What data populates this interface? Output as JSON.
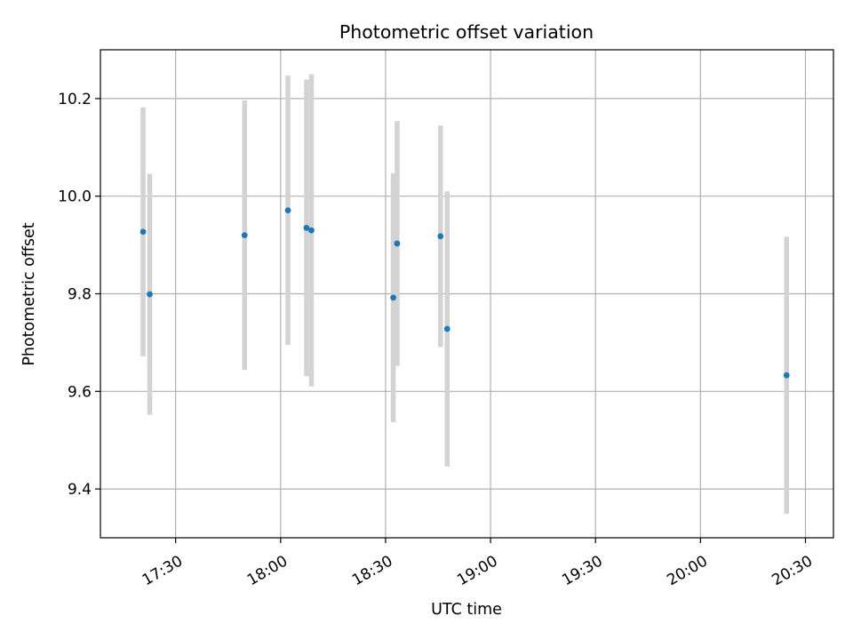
{
  "chart_data": {
    "type": "scatter",
    "title": "Photometric offset variation",
    "xlabel": "UTC time",
    "ylabel": "Photometric offset",
    "x_unit": "minutes after midnight UTC",
    "xlim": [
      1028.5,
      1238
    ],
    "ylim": [
      9.3,
      10.3
    ],
    "grid": true,
    "colors": {
      "marker": "#1f77b4",
      "errorbar": "#d3d3d3",
      "grid": "#b0b0b0"
    },
    "x_ticks": [
      {
        "value": 1050,
        "label": "17:30"
      },
      {
        "value": 1080,
        "label": "18:00"
      },
      {
        "value": 1110,
        "label": "18:30"
      },
      {
        "value": 1140,
        "label": "19:00"
      },
      {
        "value": 1170,
        "label": "19:30"
      },
      {
        "value": 1200,
        "label": "20:00"
      },
      {
        "value": 1230,
        "label": "20:30"
      }
    ],
    "y_ticks": [
      {
        "value": 9.4,
        "label": "9.4"
      },
      {
        "value": 9.6,
        "label": "9.6"
      },
      {
        "value": 9.8,
        "label": "9.8"
      },
      {
        "value": 10.0,
        "label": "10.0"
      },
      {
        "value": 10.2,
        "label": "10.2"
      }
    ],
    "points": [
      {
        "time": "17:20:42",
        "x": 1040.7,
        "y": 9.927,
        "err": 0.255
      },
      {
        "time": "17:22:36",
        "x": 1042.6,
        "y": 9.799,
        "err": 0.247
      },
      {
        "time": "17:49:42",
        "x": 1069.7,
        "y": 9.92,
        "err": 0.276
      },
      {
        "time": "18:02:06",
        "x": 1082.1,
        "y": 9.971,
        "err": 0.276
      },
      {
        "time": "18:07:24",
        "x": 1087.4,
        "y": 9.935,
        "err": 0.304
      },
      {
        "time": "18:08:48",
        "x": 1088.8,
        "y": 9.93,
        "err": 0.32
      },
      {
        "time": "18:32:12",
        "x": 1112.2,
        "y": 9.792,
        "err": 0.255
      },
      {
        "time": "18:33:18",
        "x": 1113.3,
        "y": 9.903,
        "err": 0.251
      },
      {
        "time": "18:45:42",
        "x": 1125.7,
        "y": 9.918,
        "err": 0.227
      },
      {
        "time": "18:47:36",
        "x": 1127.6,
        "y": 9.728,
        "err": 0.282
      },
      {
        "time": "20:24:36",
        "x": 1224.6,
        "y": 9.633,
        "err": 0.284
      }
    ]
  }
}
